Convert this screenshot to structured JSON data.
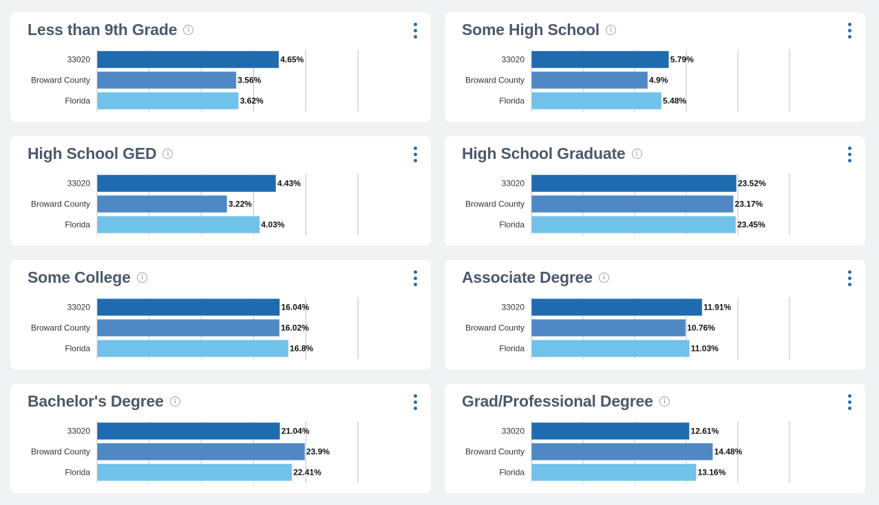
{
  "series_colors": {
    "33020": "#1f6bb0",
    "Broward County": "#4f88c4",
    "Florida": "#71c2ea"
  },
  "icons": {
    "info": "info-circle-icon",
    "menu": "kebab-menu-icon"
  },
  "chart_data": [
    {
      "type": "bar",
      "orientation": "horizontal",
      "title": "Less than 9th Grade",
      "categories": [
        "33020",
        "Broward County",
        "Florida"
      ],
      "values": [
        4.65,
        3.56,
        3.62
      ],
      "value_labels": [
        "4.65%",
        "3.56%",
        "3.62%"
      ],
      "xlim": [
        0,
        6.67
      ],
      "grid": true
    },
    {
      "type": "bar",
      "orientation": "horizontal",
      "title": "Some High School",
      "categories": [
        "33020",
        "Broward County",
        "Florida"
      ],
      "values": [
        5.79,
        4.9,
        5.48
      ],
      "value_labels": [
        "5.79%",
        "4.9%",
        "5.48%"
      ],
      "xlim": [
        0,
        10.87
      ],
      "grid": true
    },
    {
      "type": "bar",
      "orientation": "horizontal",
      "title": "High School GED",
      "categories": [
        "33020",
        "Broward County",
        "Florida"
      ],
      "values": [
        4.43,
        3.22,
        4.03
      ],
      "value_labels": [
        "4.43%",
        "3.22%",
        "4.03%"
      ],
      "xlim": [
        0,
        6.46
      ],
      "grid": true
    },
    {
      "type": "bar",
      "orientation": "horizontal",
      "title": "High School Graduate",
      "categories": [
        "33020",
        "Broward County",
        "Florida"
      ],
      "values": [
        23.52,
        23.17,
        23.45
      ],
      "value_labels": [
        "23.52%",
        "23.17%",
        "23.45%"
      ],
      "xlim": [
        0,
        29.6
      ],
      "grid": true
    },
    {
      "type": "bar",
      "orientation": "horizontal",
      "title": "Some College",
      "categories": [
        "33020",
        "Broward County",
        "Florida"
      ],
      "values": [
        16.04,
        16.02,
        16.8
      ],
      "value_labels": [
        "16.04%",
        "16.02%",
        "16.8%"
      ],
      "xlim": [
        0,
        22.9
      ],
      "grid": true
    },
    {
      "type": "bar",
      "orientation": "horizontal",
      "title": "Associate Degree",
      "categories": [
        "33020",
        "Broward County",
        "Florida"
      ],
      "values": [
        11.91,
        10.76,
        11.03
      ],
      "value_labels": [
        "11.91%",
        "10.76%",
        "11.03%"
      ],
      "xlim": [
        0,
        18.0
      ],
      "grid": true
    },
    {
      "type": "bar",
      "orientation": "horizontal",
      "title": "Bachelor's Degree",
      "categories": [
        "33020",
        "Broward County",
        "Florida"
      ],
      "values": [
        21.04,
        23.9,
        22.41
      ],
      "value_labels": [
        "21.04%",
        "23.9%",
        "22.41%"
      ],
      "xlim": [
        0,
        30.0
      ],
      "grid": true
    },
    {
      "type": "bar",
      "orientation": "horizontal",
      "title": "Grad/Professional Degree",
      "categories": [
        "33020",
        "Broward County",
        "Florida"
      ],
      "values": [
        12.61,
        14.48,
        13.16
      ],
      "value_labels": [
        "12.61%",
        "14.48%",
        "13.16%"
      ],
      "xlim": [
        0,
        20.6
      ],
      "grid": true
    }
  ]
}
